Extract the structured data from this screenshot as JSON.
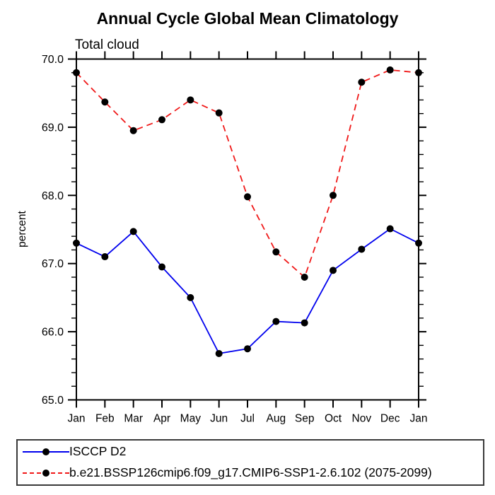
{
  "title": "Annual Cycle Global Mean Climatology",
  "chart_data": {
    "type": "line",
    "subtitle": "Total cloud",
    "ylabel": "percent",
    "x_categories": [
      "Jan",
      "Feb",
      "Mar",
      "Apr",
      "May",
      "Jun",
      "Jul",
      "Aug",
      "Sep",
      "Oct",
      "Nov",
      "Dec",
      "Jan"
    ],
    "ylim": [
      65.0,
      70.0
    ],
    "y_major_step": 1.0,
    "y_minor_step": 0.2,
    "y_tick_labels": [
      "65.0",
      "66.0",
      "67.0",
      "68.0",
      "69.0",
      "70.0"
    ],
    "grid": "off",
    "legend_position": "bottom",
    "axis_color": "#000000",
    "marker_color": "#000000",
    "series": [
      {
        "name": "ISCCP D2",
        "color": "#0000ee",
        "style": "solid",
        "marker": "circle",
        "values": [
          67.3,
          67.1,
          67.47,
          66.95,
          66.5,
          65.68,
          65.75,
          66.15,
          66.13,
          66.9,
          67.21,
          67.51,
          67.3
        ]
      },
      {
        "name": "b.e21.BSSP126cmip6.f09_g17.CMIP6-SSP1-2.6.102 (2075-2099)",
        "color": "#f01818",
        "style": "dashed",
        "marker": "circle",
        "values": [
          69.8,
          69.37,
          68.95,
          69.11,
          69.4,
          69.21,
          67.98,
          67.17,
          66.8,
          68.0,
          69.66,
          69.84,
          69.8
        ]
      }
    ]
  }
}
